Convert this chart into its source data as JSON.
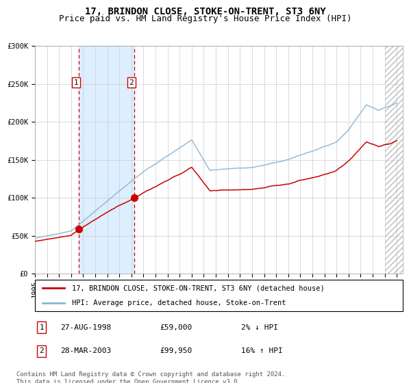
{
  "title": "17, BRINDON CLOSE, STOKE-ON-TRENT, ST3 6NY",
  "subtitle": "Price paid vs. HM Land Registry's House Price Index (HPI)",
  "ylim": [
    0,
    300000
  ],
  "xlim_start": 1995.0,
  "xlim_end": 2025.5,
  "yticks": [
    0,
    50000,
    100000,
    150000,
    200000,
    250000,
    300000
  ],
  "ytick_labels": [
    "£0",
    "£50K",
    "£100K",
    "£150K",
    "£200K",
    "£250K",
    "£300K"
  ],
  "purchase1_year": 1998.65,
  "purchase1_price": 59000,
  "purchase2_year": 2003.24,
  "purchase2_price": 99950,
  "line_color_property": "#cc0000",
  "line_color_hpi": "#8ab4d4",
  "shade_color": "#ddeeff",
  "vline_color": "#cc0000",
  "grid_color": "#cccccc",
  "bg_color": "#ffffff",
  "legend_label_property": "17, BRINDON CLOSE, STOKE-ON-TRENT, ST3 6NY (detached house)",
  "legend_label_hpi": "HPI: Average price, detached house, Stoke-on-Trent",
  "table_rows": [
    {
      "num": "1",
      "date": "27-AUG-1998",
      "price": "£59,000",
      "hpi": "2% ↓ HPI"
    },
    {
      "num": "2",
      "date": "28-MAR-2003",
      "price": "£99,950",
      "hpi": "16% ↑ HPI"
    }
  ],
  "footer": "Contains HM Land Registry data © Crown copyright and database right 2024.\nThis data is licensed under the Open Government Licence v3.0.",
  "title_fontsize": 10,
  "subtitle_fontsize": 9,
  "tick_fontsize": 7.5,
  "legend_fontsize": 7.5,
  "table_fontsize": 8,
  "footer_fontsize": 6.5
}
